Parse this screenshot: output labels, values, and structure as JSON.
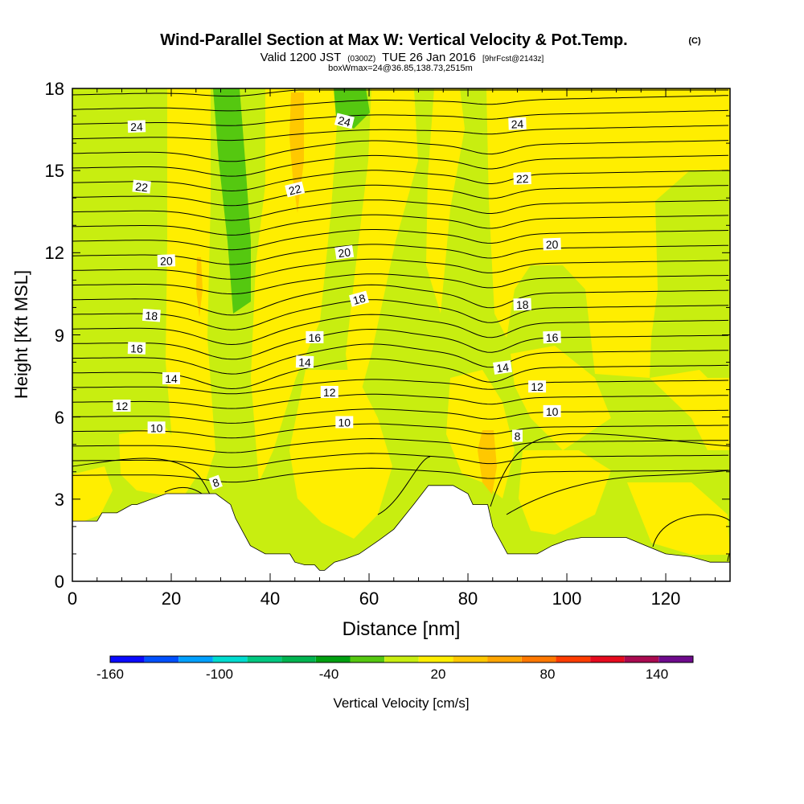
{
  "chart_data": {
    "type": "heatmap",
    "title": "Wind-Parallel Section at Max W: Vertical Velocity & Pot.Temp.",
    "title_mark": "(C)",
    "subtitle_parts": [
      "Valid 1200 JST",
      "(0300Z)",
      "TUE 26 Jan 2016",
      "[9hrFcst@2143z]"
    ],
    "subtitle2": "boxWmax=24@36.85,138.73,2515m",
    "xlabel": "Distance [nm]",
    "ylabel": "Height [Kft MSL]",
    "xlim": [
      0,
      133
    ],
    "ylim": [
      0,
      18
    ],
    "x_ticks": [
      "0",
      "20",
      "40",
      "60",
      "80",
      "100",
      "120"
    ],
    "y_ticks": [
      "0",
      "3",
      "6",
      "9",
      "12",
      "15",
      "18"
    ],
    "colorbar": {
      "label": "Vertical Velocity [cm/s]",
      "tick_labels": [
        "-160",
        "-100",
        "-40",
        "20",
        "80",
        "140"
      ],
      "colors": [
        "#0a0aff",
        "#0050ff",
        "#00a0ff",
        "#00dcd0",
        "#00c880",
        "#00b450",
        "#00a010",
        "#55c810",
        "#c8ee10",
        "#ffee00",
        "#ffc800",
        "#ffa500",
        "#ff7800",
        "#ff3c00",
        "#e60a1e",
        "#aa0a50",
        "#6e0a8c"
      ]
    },
    "velocity_fill": {
      "background": "#c8ee10",
      "weak_ascent": "#ffee00",
      "moderate_ascent": "#ffc800",
      "moderate_descent": "#55c810",
      "terrain": "#ffffff"
    },
    "terrain_profile": {
      "x": [
        0,
        2,
        5,
        6,
        9,
        12,
        13,
        16,
        19,
        26,
        29,
        32,
        33,
        36,
        39,
        40,
        44,
        45,
        47,
        49,
        50,
        51,
        53,
        55,
        58,
        62,
        65,
        69,
        72,
        74,
        77,
        80,
        81,
        84,
        85,
        88,
        91,
        94,
        97,
        100,
        103,
        106,
        109,
        112,
        116,
        120,
        125,
        129,
        133
      ],
      "y": [
        2.2,
        2.2,
        2.2,
        2.5,
        2.5,
        2.8,
        2.8,
        3.0,
        3.2,
        3.2,
        3.2,
        2.8,
        2.3,
        1.3,
        1.0,
        1.0,
        1.0,
        0.7,
        0.6,
        0.6,
        0.4,
        0.4,
        0.7,
        0.8,
        1.0,
        1.5,
        1.9,
        2.8,
        3.5,
        3.5,
        3.5,
        3.2,
        2.8,
        2.8,
        2.0,
        1.0,
        1.0,
        1.0,
        1.3,
        1.5,
        1.6,
        1.6,
        1.6,
        1.6,
        1.3,
        1.0,
        0.9,
        0.7,
        0.7
      ]
    },
    "theta_contour_labels": [
      {
        "text": "24",
        "x": 13,
        "y": 16.6,
        "angle": -2
      },
      {
        "text": "24",
        "x": 55,
        "y": 16.8,
        "angle": 14
      },
      {
        "text": "24",
        "x": 90,
        "y": 16.7,
        "angle": -2
      },
      {
        "text": "22",
        "x": 14,
        "y": 14.4,
        "angle": 6
      },
      {
        "text": "22",
        "x": 45,
        "y": 14.3,
        "angle": -14
      },
      {
        "text": "22",
        "x": 91,
        "y": 14.7,
        "angle": -2
      },
      {
        "text": "20",
        "x": 19,
        "y": 11.7,
        "angle": -2
      },
      {
        "text": "20",
        "x": 55,
        "y": 12.0,
        "angle": -8
      },
      {
        "text": "20",
        "x": 97,
        "y": 12.3,
        "angle": -2
      },
      {
        "text": "18",
        "x": 16,
        "y": 9.7,
        "angle": 4
      },
      {
        "text": "18",
        "x": 58,
        "y": 10.3,
        "angle": -15
      },
      {
        "text": "18",
        "x": 91,
        "y": 10.1,
        "angle": -2
      },
      {
        "text": "16",
        "x": 13,
        "y": 8.5,
        "angle": 2
      },
      {
        "text": "16",
        "x": 49,
        "y": 8.9,
        "angle": 0
      },
      {
        "text": "16",
        "x": 97,
        "y": 8.9,
        "angle": -2
      },
      {
        "text": "14",
        "x": 20,
        "y": 7.4,
        "angle": 0
      },
      {
        "text": "14",
        "x": 47,
        "y": 8.0,
        "angle": 2
      },
      {
        "text": "14",
        "x": 87,
        "y": 7.8,
        "angle": -8
      },
      {
        "text": "12",
        "x": 10,
        "y": 6.4,
        "angle": 0
      },
      {
        "text": "12",
        "x": 52,
        "y": 6.9,
        "angle": 0
      },
      {
        "text": "12",
        "x": 94,
        "y": 7.1,
        "angle": 0
      },
      {
        "text": "10",
        "x": 17,
        "y": 5.6,
        "angle": 0
      },
      {
        "text": "10",
        "x": 55,
        "y": 5.8,
        "angle": 0
      },
      {
        "text": "10",
        "x": 97,
        "y": 6.2,
        "angle": 0
      },
      {
        "text": "8",
        "x": 29,
        "y": 3.6,
        "angle": -20
      },
      {
        "text": "8",
        "x": 90,
        "y": 5.3,
        "angle": 0
      }
    ]
  }
}
